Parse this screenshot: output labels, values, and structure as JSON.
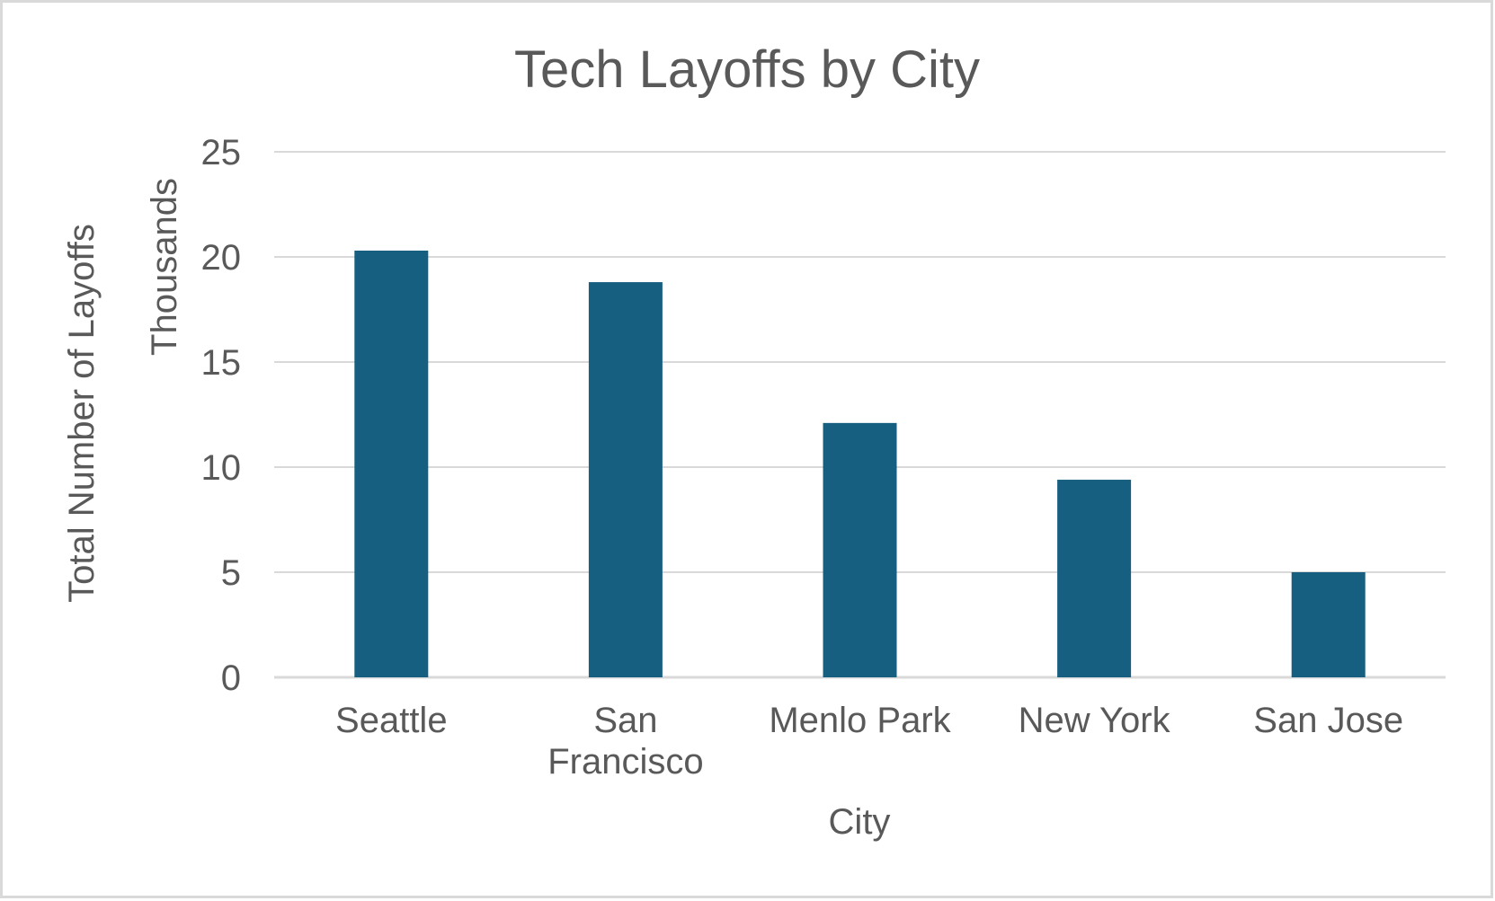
{
  "chart_data": {
    "type": "bar",
    "title": "Tech Layoffs by City",
    "xlabel": "City",
    "ylabel": "Total Number of Layoffs",
    "y_display_units": "Thousands",
    "categories": [
      [
        "Seattle"
      ],
      [
        "San",
        "Francisco"
      ],
      [
        "Menlo Park"
      ],
      [
        "New York"
      ],
      [
        "San Jose"
      ]
    ],
    "values": [
      20.3,
      18.8,
      12.1,
      9.4,
      5.0
    ],
    "ylim": [
      0,
      25
    ],
    "yticks": [
      "0",
      "5",
      "10",
      "15",
      "20",
      "25"
    ],
    "grid": true,
    "legend": "none",
    "colors": {
      "bar": "#175F80",
      "grid": "#D9D9D9",
      "text": "#595959",
      "border": "#D9D9D9"
    }
  }
}
